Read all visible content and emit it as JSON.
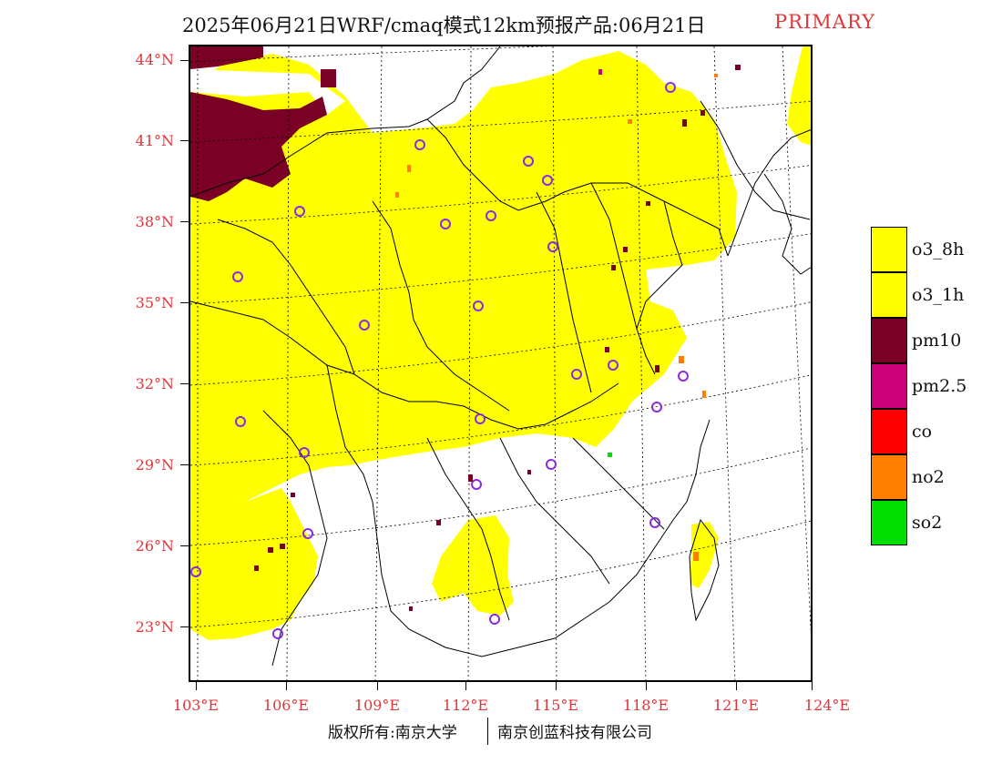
{
  "header": {
    "title": "2025年06月21日WRF/cmaq模式12km预报产品:06月21日",
    "tag": "PRIMARY"
  },
  "map": {
    "lat_labels": [
      "44°N",
      "41°N",
      "38°N",
      "35°N",
      "32°N",
      "29°N",
      "26°N",
      "23°N"
    ],
    "lon_labels": [
      "103°E",
      "106°E",
      "109°E",
      "112°E",
      "115°E",
      "118°E",
      "121°E",
      "124°E"
    ]
  },
  "legend": {
    "items": [
      {
        "label": "o3_8h",
        "color": "#ffff00"
      },
      {
        "label": "o3_1h",
        "color": "#ffff00"
      },
      {
        "label": "pm10",
        "color": "#7a0026"
      },
      {
        "label": "pm2.5",
        "color": "#cc0077"
      },
      {
        "label": "co",
        "color": "#ff0000"
      },
      {
        "label": "no2",
        "color": "#ff7f00"
      },
      {
        "label": "so2",
        "color": "#00dd00"
      }
    ]
  },
  "footer": {
    "copyright": "版权所有:南京大学",
    "company": "南京创蓝科技有限公司"
  }
}
